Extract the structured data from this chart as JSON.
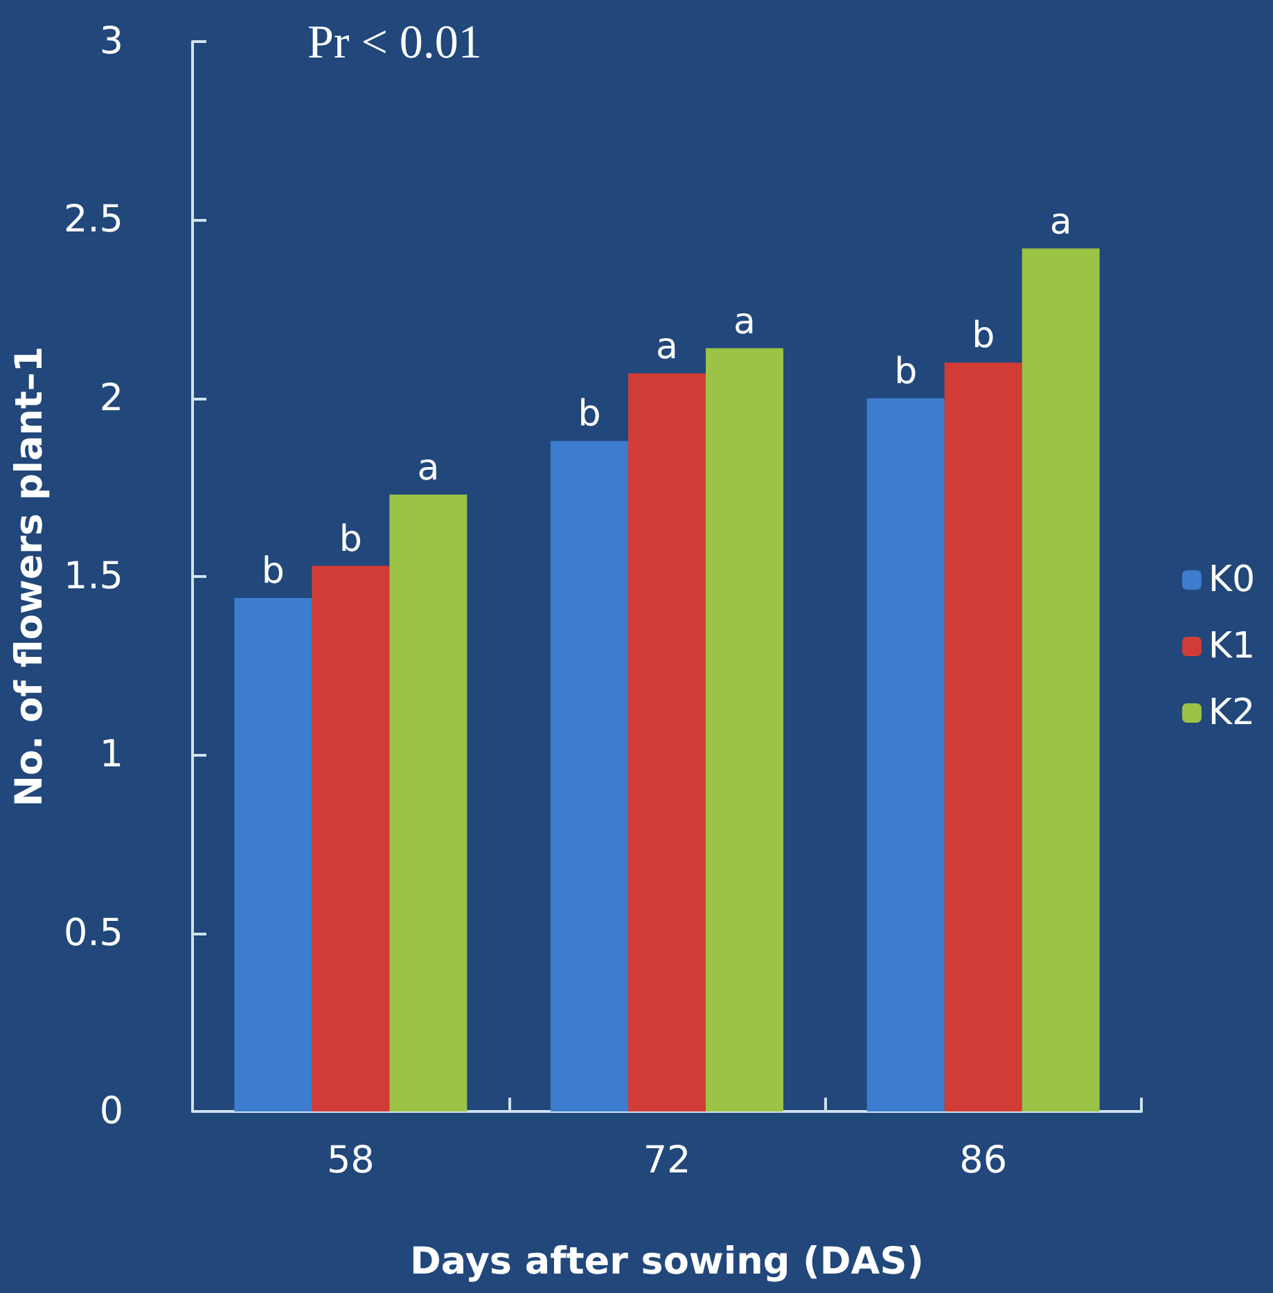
{
  "chart_data": {
    "type": "bar",
    "xlabel": "Days after sowing (DAS)",
    "ylabel": "No. of flowers plant–1",
    "annotations": [
      "Pr < 0.01"
    ],
    "categories": [
      "58",
      "72",
      "86"
    ],
    "series": [
      {
        "name": "K0",
        "color": "#3d7dd0",
        "values": [
          1.44,
          1.88,
          2.0
        ],
        "value_labels": [
          "b",
          "b",
          "b"
        ]
      },
      {
        "name": "K1",
        "color": "#d23c36",
        "values": [
          1.53,
          2.07,
          2.1
        ],
        "value_labels": [
          "b",
          "a",
          "b"
        ]
      },
      {
        "name": "K2",
        "color": "#9bc345",
        "values": [
          1.73,
          2.14,
          2.42
        ],
        "value_labels": [
          "a",
          "a",
          "a"
        ]
      }
    ],
    "ylim": [
      0,
      3
    ],
    "yticks": [
      0,
      0.5,
      1,
      1.5,
      2,
      2.5,
      3
    ],
    "grid": false,
    "legend": "right"
  }
}
